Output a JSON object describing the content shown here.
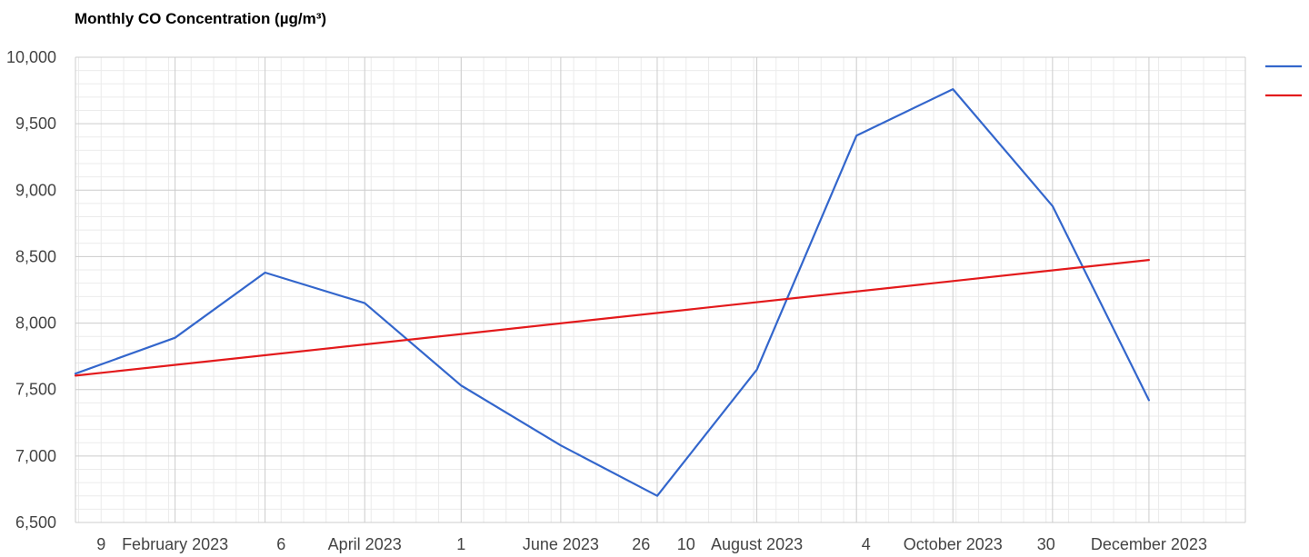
{
  "chart_data": {
    "type": "line",
    "title": "Monthly CO Concentration (µg/m³)",
    "xlabel": "",
    "ylabel": "",
    "x_type": "date",
    "xlim": [
      "2023-01-01",
      "2023-12-31"
    ],
    "ylim": [
      6500,
      10000
    ],
    "y_ticks": [
      6500,
      7000,
      7500,
      8000,
      8500,
      9000,
      9500,
      10000
    ],
    "y_tick_labels": [
      "6,500",
      "7,000",
      "7,500",
      "8,000",
      "8,500",
      "9,000",
      "9,500",
      "10,000"
    ],
    "x_tick_labels": [
      {
        "date": "2023-01-09",
        "label": "9"
      },
      {
        "date": "2023-02-01",
        "label": "February 2023"
      },
      {
        "date": "2023-03-06",
        "label": "6"
      },
      {
        "date": "2023-04-01",
        "label": "April 2023"
      },
      {
        "date": "2023-05-01",
        "label": "1"
      },
      {
        "date": "2023-06-01",
        "label": "June 2023"
      },
      {
        "date": "2023-06-26",
        "label": "26"
      },
      {
        "date": "2023-07-10",
        "label": "10"
      },
      {
        "date": "2023-08-01",
        "label": "August 2023"
      },
      {
        "date": "2023-09-04",
        "label": "4"
      },
      {
        "date": "2023-10-01",
        "label": "October 2023"
      },
      {
        "date": "2023-10-30",
        "label": "30"
      },
      {
        "date": "2023-12-01",
        "label": "December 2023"
      }
    ],
    "x_major_grid": [
      "2023-02-01",
      "2023-03-01",
      "2023-04-01",
      "2023-05-01",
      "2023-06-01",
      "2023-07-01",
      "2023-08-01",
      "2023-09-01",
      "2023-10-01",
      "2023-11-01",
      "2023-12-01"
    ],
    "grid": true,
    "legend": "right",
    "series": [
      {
        "name": "",
        "color": "#3366cc",
        "points": [
          {
            "x": "2023-01-01",
            "y": 7620
          },
          {
            "x": "2023-02-01",
            "y": 7890
          },
          {
            "x": "2023-03-01",
            "y": 8380
          },
          {
            "x": "2023-04-01",
            "y": 8150
          },
          {
            "x": "2023-05-01",
            "y": 7530
          },
          {
            "x": "2023-06-01",
            "y": 7080
          },
          {
            "x": "2023-07-01",
            "y": 6700
          },
          {
            "x": "2023-08-01",
            "y": 7650
          },
          {
            "x": "2023-09-01",
            "y": 9410
          },
          {
            "x": "2023-10-01",
            "y": 9760
          },
          {
            "x": "2023-11-01",
            "y": 8880
          },
          {
            "x": "2023-12-01",
            "y": 7420
          }
        ]
      },
      {
        "name": "",
        "color": "#e31a1c",
        "points": [
          {
            "x": "2023-01-01",
            "y": 7605
          },
          {
            "x": "2023-12-01",
            "y": 8475
          }
        ]
      }
    ]
  }
}
